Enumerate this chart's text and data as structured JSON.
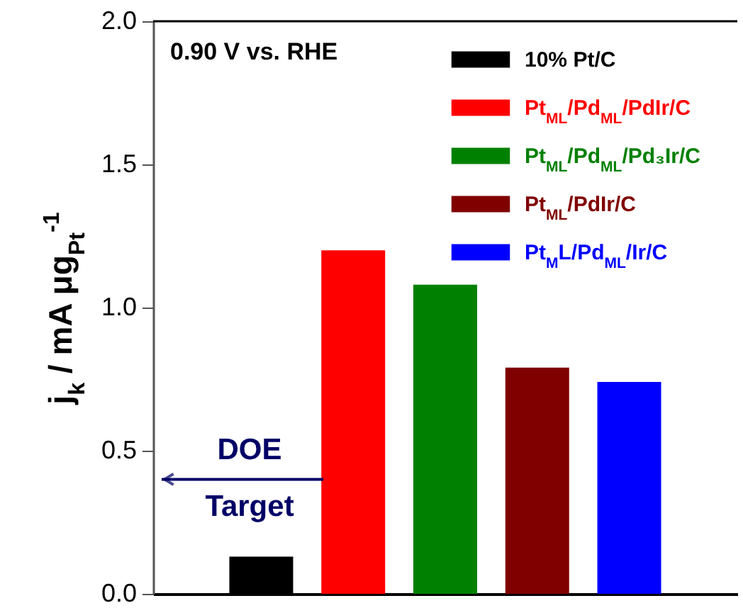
{
  "chart_data": {
    "type": "bar",
    "ylabel": "j$_{k}$ / mA μg$_{Pt}$$^{-1}$",
    "categories": [
      null,
      null,
      null,
      null,
      null
    ],
    "series": [
      {
        "name": "10% Pt/C",
        "color": "#000000",
        "values": [
          0.13,
          null,
          null,
          null,
          null
        ]
      },
      {
        "name": "Pt$_{ML}$/Pd$_{ML}$/PdIr/C",
        "color": "#ff0000",
        "values": [
          null,
          1.2,
          null,
          null,
          null
        ]
      },
      {
        "name": "Pt$_{ML}$/Pd$_{ML}$/Pd₃Ir/C",
        "color": "#008000",
        "values": [
          null,
          null,
          1.08,
          null,
          null
        ]
      },
      {
        "name": "Pt$_{ML}$/PdIr/C",
        "color": "#800000",
        "values": [
          null,
          null,
          null,
          0.79,
          null
        ]
      },
      {
        "name": "Pt$_{M}$L/Pd$_{ML}$/Ir/C",
        "color": "#0000ff",
        "values": [
          null,
          null,
          null,
          null,
          0.74
        ]
      }
    ],
    "ylim": [
      0,
      2
    ],
    "yticks": [
      {
        "value": 0,
        "label": "0.0"
      },
      {
        "value": 0.5,
        "label": "0.5"
      },
      {
        "value": 1,
        "label": "1.0"
      },
      {
        "value": 1.5,
        "label": "1.5"
      },
      {
        "value": 2,
        "label": "2.0"
      }
    ],
    "tick_labels": "y",
    "legend": "top right",
    "grid": false,
    "annotations": [
      "0.90 V vs. RHE"
    ],
    "ref_lines": [
      {
        "axis": "y",
        "value": 0.4,
        "label": "DOE Target",
        "color": "#000066"
      }
    ]
  }
}
